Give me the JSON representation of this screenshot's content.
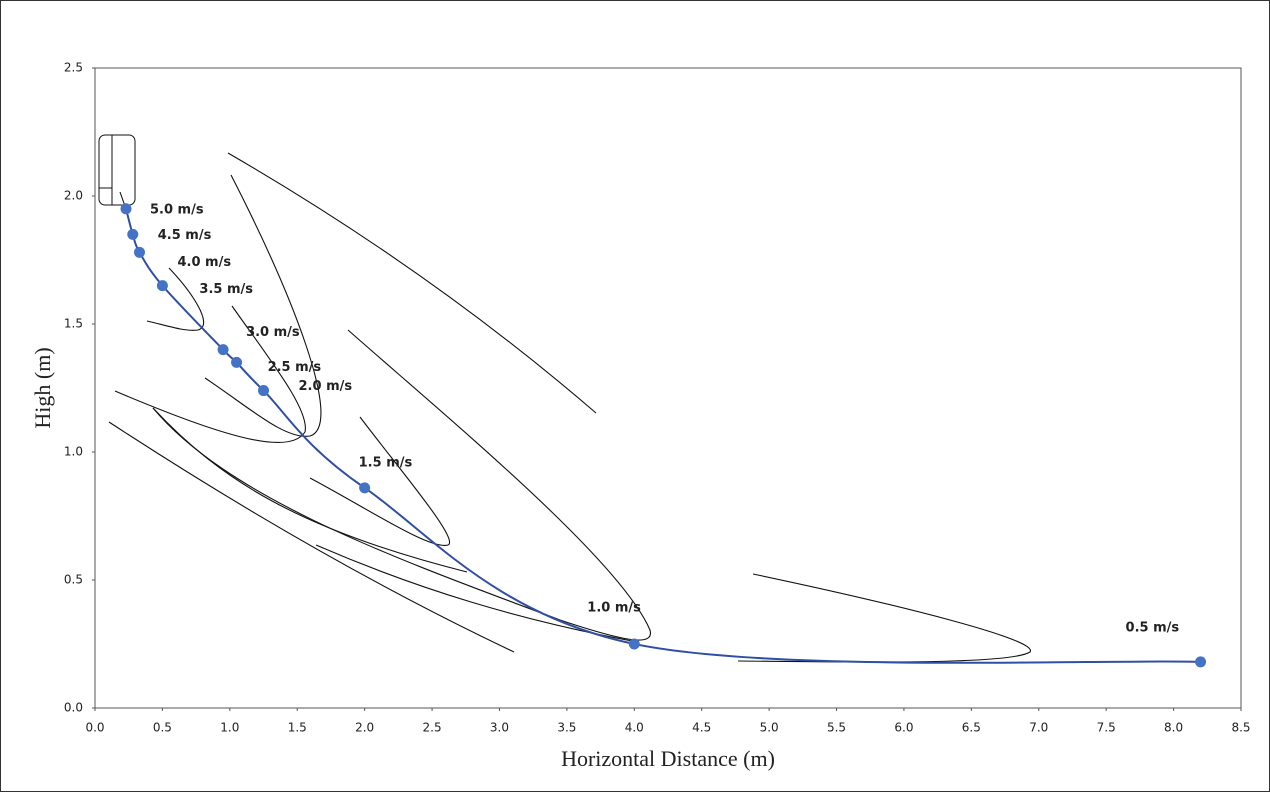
{
  "chart_data": {
    "type": "scatter",
    "x_label": "Horizontal Distance (m)",
    "y_label": "High (m)",
    "series": [
      {
        "color": "#4472c4",
        "line_color": "#2f4fa3",
        "x": [
          0.23,
          0.28,
          0.33,
          0.5,
          0.95,
          1.05,
          1.25,
          2.0,
          4.0,
          8.2
        ],
        "values": [
          1.95,
          1.85,
          1.78,
          1.65,
          1.4,
          1.35,
          1.24,
          0.86,
          0.25,
          0.18
        ],
        "point_labels": [
          "5.0 m/s",
          "4.5 m/s",
          "4.0 m/s",
          "3.5 m/s",
          "3.0 m/s",
          "2.5 m/s",
          "2.0 m/s",
          "1.5 m/s",
          "1.0 m/s",
          "0.5 m/s"
        ]
      }
    ],
    "xlim": [
      0,
      8.5
    ],
    "ylim": [
      0,
      2.5
    ],
    "xticks": [
      {
        "value": 0,
        "label": "0.0"
      },
      0.5,
      {
        "value": 1,
        "label": "1.0"
      },
      1.5,
      {
        "value": 2,
        "label": "2.0"
      },
      2.5,
      {
        "value": 3,
        "label": "3.0"
      },
      3.5,
      {
        "value": 4,
        "label": "4.0"
      },
      4.5,
      {
        "value": 5,
        "label": "5.0"
      },
      5.5,
      {
        "value": 6,
        "label": "6.0"
      },
      6.5,
      {
        "value": 7,
        "label": "7.0"
      },
      7.5,
      {
        "value": 8,
        "label": "8.0"
      },
      8.5
    ],
    "yticks": [
      {
        "value": 0,
        "label": "0.0"
      },
      0.5,
      {
        "value": 1,
        "label": "1.0"
      },
      1.5,
      {
        "value": 2,
        "label": "2.0"
      },
      2.5
    ],
    "grid": false
  }
}
